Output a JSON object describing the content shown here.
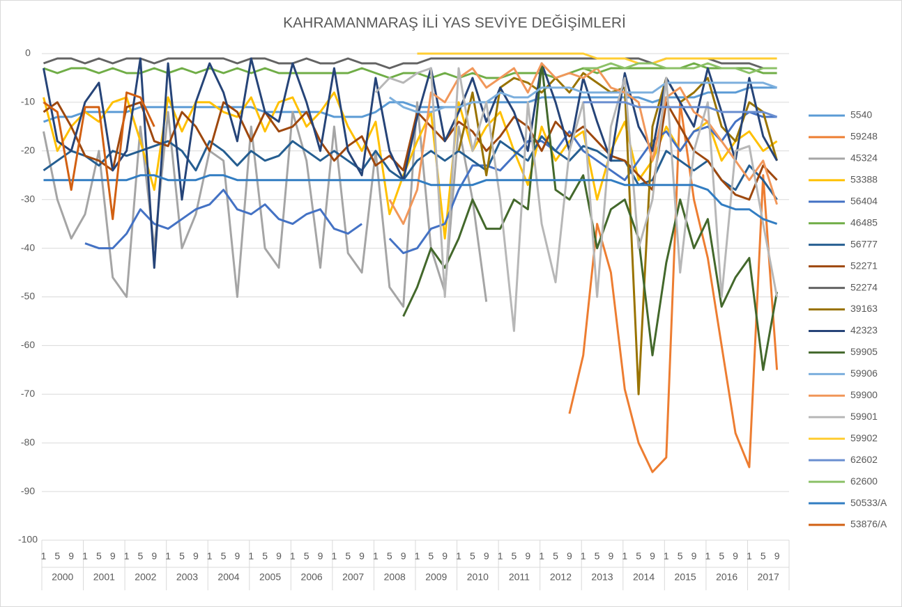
{
  "chart_data": {
    "type": "line",
    "title": "KAHRAMANMARAŞ İLİ YAS SEVİYE DEĞİŞİMLERİ",
    "categories": [
      "1",
      "5",
      "9",
      "1",
      "5",
      "9",
      "1",
      "5",
      "9",
      "1",
      "5",
      "9",
      "1",
      "5",
      "9",
      "1",
      "5",
      "9",
      "1",
      "5",
      "9",
      "1",
      "5",
      "9",
      "1",
      "5",
      "9",
      "1",
      "5",
      "9",
      "1",
      "5",
      "9",
      "1",
      "5",
      "9",
      "1",
      "5",
      "9",
      "1",
      "5",
      "9",
      "1",
      "5",
      "9",
      "1",
      "5",
      "9",
      "1",
      "5",
      "9",
      "1",
      "5",
      "9"
    ],
    "years": [
      "2000",
      "2001",
      "2002",
      "2003",
      "2004",
      "2005",
      "2006",
      "2007",
      "2008",
      "2009",
      "2010",
      "2011",
      "2012",
      "2013",
      "2014",
      "2015",
      "2016",
      "2017"
    ],
    "ylim": [
      -100,
      0
    ],
    "yticks": [
      0,
      -10,
      -20,
      -30,
      -40,
      -50,
      -60,
      -70,
      -80,
      -90,
      -100
    ],
    "grid": true,
    "legend": "right",
    "series": [
      {
        "name": "5540",
        "color": "#5b9bd5",
        "values": [
          -14,
          -13,
          -13,
          -12,
          -12,
          -12,
          -12,
          -11,
          -11,
          -11,
          -11,
          -11,
          -11,
          -11,
          -11,
          -11,
          -12,
          -12,
          -12,
          -12,
          -12,
          -13,
          -13,
          -13,
          -12,
          -10,
          -10,
          -11,
          -11,
          -11,
          -11,
          -10,
          -10,
          -10,
          -10,
          -10,
          -9,
          -9,
          -9,
          -9,
          -9,
          -9,
          -9,
          -9,
          -10,
          -9,
          -9,
          -9,
          -8,
          -8,
          -8,
          -7,
          -7,
          -7
        ]
      },
      {
        "name": "59248",
        "color": "#ed7d31",
        "values": [
          null,
          null,
          null,
          null,
          null,
          null,
          null,
          null,
          null,
          null,
          null,
          null,
          null,
          null,
          null,
          null,
          null,
          null,
          null,
          null,
          null,
          null,
          null,
          null,
          null,
          null,
          null,
          null,
          null,
          null,
          null,
          null,
          null,
          null,
          null,
          null,
          null,
          null,
          -74,
          -62,
          -35,
          -45,
          -69,
          -80,
          -86,
          -83,
          -10,
          -30,
          -42,
          -60,
          -78,
          -85,
          -25,
          -65
        ]
      },
      {
        "name": "45324",
        "color": "#a5a5a5",
        "values": [
          -16,
          -30,
          -38,
          -33,
          -20,
          -46,
          -50,
          -15,
          -40,
          -12,
          -40,
          -33,
          -20,
          -22,
          -50,
          -15,
          -40,
          -44,
          -12,
          -22,
          -44,
          -15,
          -41,
          -45,
          -20,
          -48,
          -52,
          -10,
          -40,
          -49,
          -15,
          -30,
          -51,
          null,
          null,
          null,
          null,
          null,
          null,
          null,
          null,
          null,
          null,
          null,
          null,
          null,
          null,
          null,
          null,
          null,
          null,
          null,
          null,
          null
        ]
      },
      {
        "name": "53388",
        "color": "#ffc000",
        "values": [
          -9,
          -20,
          -15,
          -12,
          -14,
          -10,
          -9,
          -18,
          -28,
          -9,
          -16,
          -10,
          -10,
          -12,
          -13,
          -9,
          -16,
          -10,
          -9,
          -15,
          -12,
          -8,
          -15,
          -20,
          -14,
          -33,
          -25,
          -18,
          -12,
          -38,
          -10,
          -20,
          -15,
          -12,
          -20,
          -27,
          -15,
          -22,
          -18,
          -16,
          -30,
          -20,
          -14,
          -26,
          -22,
          -15,
          -20,
          -16,
          -14,
          -22,
          -18,
          -16,
          -20,
          -18
        ]
      },
      {
        "name": "56404",
        "color": "#4472c4",
        "values": [
          null,
          null,
          null,
          -39,
          -40,
          -40,
          -37,
          -32,
          -35,
          -36,
          -34,
          -32,
          -31,
          -28,
          -32,
          -33,
          -31,
          -34,
          -35,
          -33,
          -32,
          -36,
          -37,
          -35,
          null,
          -38,
          -41,
          -40,
          -36,
          -35,
          -28,
          -23,
          -23,
          -24,
          -21,
          -18,
          -18,
          -20,
          -16,
          -20,
          -22,
          -24,
          -26,
          -22,
          -18,
          -16,
          -20,
          -16,
          -15,
          -18,
          -14,
          -12,
          -13,
          -13
        ]
      },
      {
        "name": "46485",
        "color": "#70ad47",
        "values": [
          -3,
          -4,
          -3,
          -3,
          -4,
          -3,
          -4,
          -4,
          -3,
          -4,
          -3,
          -4,
          -3,
          -4,
          -3,
          -4,
          -3,
          -4,
          -4,
          -4,
          -4,
          -4,
          -4,
          -3,
          -4,
          -5,
          -4,
          -4,
          -5,
          -4,
          -5,
          -4,
          -5,
          -5,
          -4,
          -4,
          -4,
          -5,
          -4,
          -3,
          -4,
          -3,
          -3,
          -3,
          -3,
          -3,
          -3,
          -2,
          -3,
          -3,
          -3,
          -3,
          -4,
          -4
        ]
      },
      {
        "name": "56777",
        "color": "#255e91",
        "values": [
          -24,
          -22,
          -20,
          -21,
          -23,
          -20,
          -21,
          -20,
          -19,
          -18,
          -20,
          -24,
          -18,
          -20,
          -23,
          -20,
          -22,
          -21,
          -18,
          -20,
          -22,
          -20,
          -22,
          -24,
          -20,
          -24,
          -26,
          -22,
          -20,
          -22,
          -20,
          -22,
          -24,
          -18,
          -20,
          -22,
          -17,
          -20,
          -22,
          -19,
          -20,
          -22,
          -22,
          -27,
          -26,
          -20,
          -22,
          -24,
          -22,
          -26,
          -28,
          -23,
          -26,
          -30
        ]
      },
      {
        "name": "52271",
        "color": "#9e480e",
        "values": [
          -12,
          -10,
          -15,
          -21,
          -22,
          -24,
          -11,
          -10,
          -18,
          -19,
          -12,
          -15,
          -20,
          -10,
          -12,
          -18,
          -12,
          -16,
          -15,
          -12,
          -18,
          -22,
          -19,
          -17,
          -23,
          -21,
          -24,
          -12,
          -15,
          -18,
          -14,
          -16,
          -20,
          -17,
          -13,
          -15,
          -20,
          -14,
          -17,
          -15,
          -18,
          -21,
          -22,
          -25,
          -28,
          -10,
          -15,
          -20,
          -22,
          -26,
          -29,
          -30,
          -23,
          -26
        ]
      },
      {
        "name": "52274",
        "color": "#636363",
        "values": [
          -2,
          -1,
          -1,
          -2,
          -1,
          -2,
          -1,
          -1,
          -2,
          -1,
          -1,
          -1,
          -1,
          -1,
          -2,
          -1,
          -1,
          -2,
          -2,
          -1,
          -2,
          -2,
          -1,
          -2,
          -2,
          -3,
          -2,
          -2,
          -1,
          -1,
          -1,
          -1,
          -1,
          -1,
          -1,
          -1,
          -1,
          -1,
          -1,
          -1,
          -1,
          -1,
          -1,
          -1,
          -2,
          -1,
          -1,
          -1,
          -1,
          -2,
          -2,
          -2,
          -3,
          -3
        ]
      },
      {
        "name": "39163",
        "color": "#997300",
        "values": [
          null,
          null,
          null,
          null,
          null,
          null,
          null,
          null,
          null,
          null,
          null,
          null,
          null,
          null,
          null,
          null,
          null,
          null,
          null,
          null,
          null,
          null,
          null,
          null,
          null,
          null,
          null,
          null,
          null,
          null,
          -20,
          -8,
          -25,
          -7,
          -5,
          -6,
          -8,
          -5,
          -8,
          -4,
          -6,
          -8,
          -7,
          -70,
          -15,
          -5,
          -10,
          -8,
          -5,
          -15,
          -18,
          -10,
          -12,
          -22
        ]
      },
      {
        "name": "42323",
        "color": "#264478",
        "values": [
          -3,
          -18,
          -20,
          -10,
          -6,
          -24,
          -20,
          -1,
          -44,
          -2,
          -30,
          -10,
          -2,
          -8,
          -18,
          -1,
          -12,
          -14,
          -2,
          -10,
          -20,
          -3,
          -20,
          -25,
          -5,
          -20,
          -26,
          -13,
          -3,
          -18,
          -12,
          -5,
          -14,
          -7,
          -12,
          -20,
          -2,
          -10,
          -20,
          -5,
          -14,
          -22,
          -4,
          -15,
          -20,
          -5,
          -10,
          -15,
          -3,
          -12,
          -22,
          -5,
          -17,
          -22
        ]
      },
      {
        "name": "59905",
        "color": "#43682b",
        "values": [
          null,
          null,
          null,
          null,
          null,
          null,
          null,
          null,
          null,
          null,
          null,
          null,
          null,
          null,
          null,
          null,
          null,
          null,
          null,
          null,
          null,
          null,
          null,
          null,
          null,
          null,
          -54,
          -48,
          -40,
          -44,
          -38,
          -30,
          -36,
          -36,
          -30,
          -32,
          -2,
          -28,
          -30,
          -25,
          -40,
          -32,
          -30,
          -38,
          -62,
          -43,
          -30,
          -40,
          -34,
          -52,
          -46,
          -42,
          -65,
          -49
        ]
      },
      {
        "name": "59906",
        "color": "#7cafdd",
        "values": [
          null,
          null,
          null,
          null,
          null,
          null,
          null,
          null,
          null,
          null,
          null,
          null,
          null,
          null,
          null,
          null,
          null,
          null,
          null,
          null,
          null,
          null,
          null,
          null,
          null,
          -9,
          -11,
          -12,
          -12,
          -11,
          -11,
          -10,
          -10,
          -8,
          -9,
          -9,
          -7,
          -7,
          -7,
          -8,
          -8,
          -8,
          -8,
          -8,
          -8,
          -6,
          -6,
          -6,
          -6,
          -6,
          -6,
          -6,
          -6,
          -7
        ]
      },
      {
        "name": "59900",
        "color": "#f1975a",
        "values": [
          null,
          null,
          null,
          null,
          null,
          null,
          null,
          null,
          null,
          null,
          null,
          null,
          null,
          null,
          null,
          null,
          null,
          null,
          null,
          null,
          null,
          null,
          null,
          null,
          null,
          -30,
          -35,
          -28,
          -8,
          -10,
          -5,
          -3,
          -7,
          -5,
          -3,
          -8,
          -2,
          -5,
          -4,
          -5,
          -3,
          -7,
          -8,
          -10,
          -22,
          -9,
          -7,
          -12,
          -14,
          -18,
          -22,
          -26,
          -22,
          -31
        ]
      },
      {
        "name": "59901",
        "color": "#b7b7b7",
        "values": [
          null,
          null,
          null,
          null,
          null,
          null,
          null,
          null,
          null,
          null,
          null,
          null,
          null,
          null,
          null,
          null,
          null,
          null,
          null,
          null,
          null,
          null,
          null,
          null,
          -8,
          -5,
          -6,
          -4,
          -3,
          -50,
          -3,
          -20,
          -10,
          -30,
          -57,
          -10,
          -35,
          -47,
          -20,
          -10,
          -50,
          -15,
          -5,
          -40,
          -30,
          -5,
          -45,
          -20,
          -10,
          -50,
          -20,
          -19,
          -35,
          -50
        ]
      },
      {
        "name": "59902",
        "color": "#ffcd33",
        "values": [
          null,
          null,
          null,
          null,
          null,
          null,
          null,
          null,
          null,
          null,
          null,
          null,
          null,
          null,
          null,
          null,
          null,
          null,
          null,
          null,
          null,
          null,
          null,
          null,
          null,
          null,
          null,
          0,
          0,
          0,
          0,
          0,
          0,
          0,
          0,
          0,
          0,
          0,
          0,
          0,
          -1,
          -1,
          -1,
          -2,
          -2,
          -1,
          -1,
          -1,
          -1,
          -1,
          -1,
          -1,
          -1,
          -1
        ]
      },
      {
        "name": "62602",
        "color": "#698ed0",
        "values": [
          null,
          null,
          null,
          null,
          null,
          null,
          null,
          null,
          null,
          null,
          null,
          null,
          null,
          null,
          null,
          null,
          null,
          null,
          null,
          null,
          null,
          null,
          null,
          null,
          null,
          null,
          null,
          null,
          null,
          null,
          null,
          null,
          null,
          null,
          null,
          null,
          null,
          null,
          null,
          -10,
          -10,
          -10,
          -10,
          -11,
          -11,
          -11,
          -11,
          -11,
          -11,
          -12,
          -12,
          -12,
          -12,
          -13
        ]
      },
      {
        "name": "62600",
        "color": "#8cc168",
        "values": [
          null,
          null,
          null,
          null,
          null,
          null,
          null,
          null,
          null,
          null,
          null,
          null,
          null,
          null,
          null,
          null,
          null,
          null,
          null,
          null,
          null,
          null,
          null,
          null,
          null,
          null,
          null,
          null,
          null,
          null,
          null,
          null,
          null,
          null,
          null,
          null,
          null,
          null,
          null,
          -3,
          -3,
          -2,
          -3,
          -2,
          -2,
          -3,
          -3,
          -3,
          -2,
          -3,
          -3,
          -4,
          -3,
          -3
        ]
      },
      {
        "name": "50533/A",
        "color": "#327dc2",
        "values": [
          -26,
          -26,
          -26,
          -26,
          -26,
          -26,
          -26,
          -25,
          -25,
          -26,
          -26,
          -26,
          -25,
          -25,
          -26,
          -26,
          -26,
          -26,
          -26,
          -26,
          -26,
          -26,
          -26,
          -26,
          -26,
          -26,
          -26,
          -26,
          -27,
          -27,
          -27,
          -27,
          -26,
          -26,
          -26,
          -26,
          -26,
          -26,
          -26,
          -26,
          -26,
          -26,
          -27,
          -27,
          -27,
          -27,
          -27,
          -27,
          -28,
          -31,
          -32,
          -32,
          -34,
          -35
        ]
      },
      {
        "name": "53876/A",
        "color": "#d26012",
        "values": [
          -10,
          -12,
          -28,
          -11,
          -11,
          -34,
          -8,
          -9,
          -15,
          null,
          null,
          null,
          null,
          null,
          null,
          null,
          null,
          null,
          null,
          null,
          null,
          null,
          null,
          null,
          null,
          null,
          null,
          null,
          null,
          null,
          null,
          null,
          null,
          null,
          null,
          null,
          null,
          null,
          null,
          null,
          null,
          null,
          null,
          null,
          null,
          null,
          null,
          null,
          null,
          null,
          null,
          null,
          null,
          null
        ]
      }
    ]
  }
}
